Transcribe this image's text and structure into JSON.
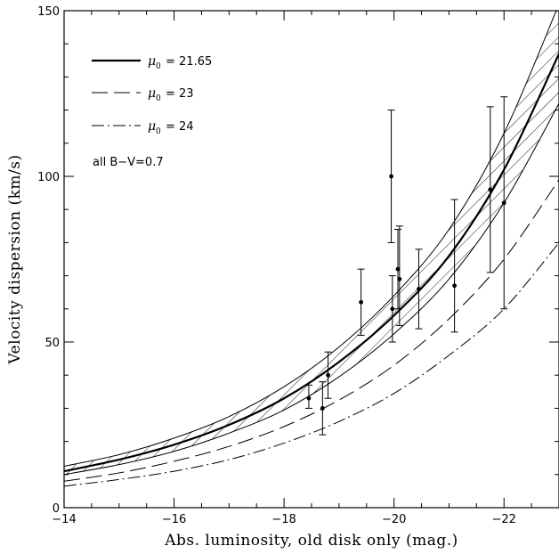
{
  "chart_data": {
    "type": "line",
    "xlabel": "Abs. luminosity, old disk only (mag.)",
    "ylabel": "Velocity dispersion (km/s)",
    "xlim": [
      -14,
      -23
    ],
    "ylim": [
      0,
      150
    ],
    "x_ticks": [
      -14,
      -16,
      -18,
      -20,
      -22
    ],
    "x_tick_labels": [
      "−14",
      "−16",
      "−18",
      "−20",
      "−22"
    ],
    "y_ticks": [
      0,
      50,
      100,
      150
    ],
    "y_tick_labels": [
      "0",
      "50",
      "100",
      "150"
    ],
    "legend_position": "top-left",
    "legend": [
      {
        "symbol": "μ",
        "subscript": "0",
        "text": "= 21.65",
        "style": "solid-thick"
      },
      {
        "symbol": "μ",
        "subscript": "0",
        "text": "= 23",
        "style": "dashed"
      },
      {
        "symbol": "μ",
        "subscript": "0",
        "text": "= 24",
        "style": "dash-dot"
      }
    ],
    "annotation": "all B−V=0.7",
    "series": [
      {
        "legend_index": 0,
        "style": "solid-thick",
        "x": [
          -14,
          -15,
          -16,
          -17,
          -18,
          -19,
          -20,
          -21,
          -22,
          -23
        ],
        "y": [
          11,
          14.5,
          19,
          25,
          33,
          44,
          58,
          76,
          102,
          137
        ]
      },
      {
        "legend_index": 1,
        "style": "dashed",
        "x": [
          -14,
          -15,
          -16,
          -17,
          -18,
          -19,
          -20,
          -21,
          -22,
          -23
        ],
        "y": [
          8,
          10.5,
          14,
          18.5,
          24.5,
          32.5,
          43,
          57,
          75,
          99
        ]
      },
      {
        "legend_index": 2,
        "style": "dash-dot",
        "x": [
          -14,
          -15,
          -16,
          -17,
          -18,
          -19,
          -20,
          -21,
          -22,
          -23
        ],
        "y": [
          6.5,
          8.5,
          11,
          14.5,
          19.5,
          26,
          34.5,
          46,
          60,
          80
        ]
      }
    ],
    "band": {
      "style": "hatched",
      "x": [
        -14,
        -15,
        -16,
        -17,
        -18,
        -19,
        -20,
        -21,
        -22,
        -23
      ],
      "y_low": [
        10,
        13,
        17,
        22.5,
        29.5,
        39.5,
        52.5,
        69,
        92,
        122
      ],
      "y_high": [
        12.5,
        16,
        21,
        27.5,
        36.5,
        48.5,
        64,
        84,
        113,
        152
      ]
    },
    "points": [
      {
        "x": -18.45,
        "y": 33,
        "err_low": 30,
        "err_high": 37
      },
      {
        "x": -18.7,
        "y": 30,
        "err_low": 22,
        "err_high": 38
      },
      {
        "x": -18.8,
        "y": 40,
        "err_low": 33,
        "err_high": 47
      },
      {
        "x": -19.4,
        "y": 62,
        "err_low": 52,
        "err_high": 72
      },
      {
        "x": -19.95,
        "y": 100,
        "err_low": 80,
        "err_high": 120
      },
      {
        "x": -19.97,
        "y": 60,
        "err_low": 50,
        "err_high": 70
      },
      {
        "x": -20.07,
        "y": 72,
        "err_low": 60,
        "err_high": 84
      },
      {
        "x": -20.1,
        "y": 69,
        "err_low": 55,
        "err_high": 85
      },
      {
        "x": -20.45,
        "y": 66,
        "err_low": 54,
        "err_high": 78
      },
      {
        "x": -21.1,
        "y": 67,
        "err_low": 53,
        "err_high": 93
      },
      {
        "x": -21.75,
        "y": 96,
        "err_low": 71,
        "err_high": 121
      },
      {
        "x": -22.0,
        "y": 92,
        "err_low": 60,
        "err_high": 124
      }
    ]
  }
}
